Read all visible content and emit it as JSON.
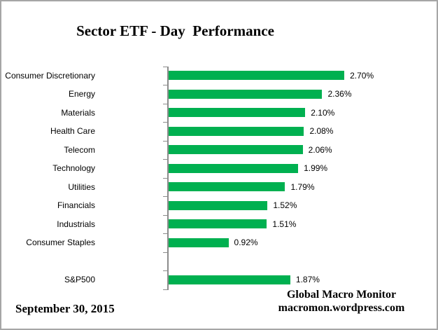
{
  "title": "Sector ETF - Day  Performance",
  "chart_data": {
    "type": "bar",
    "orientation": "horizontal",
    "categories": [
      "Consumer Discretionary",
      "Energy",
      "Materials",
      "Health Care",
      "Telecom",
      "Technology",
      "Utilities",
      "Financials",
      "Industrials",
      "Consumer Staples",
      "",
      "S&P500"
    ],
    "values": [
      2.7,
      2.36,
      2.1,
      2.08,
      2.06,
      1.99,
      1.79,
      1.52,
      1.51,
      0.92,
      null,
      1.87
    ],
    "value_labels": [
      "2.70%",
      "2.36%",
      "2.10%",
      "2.08%",
      "2.06%",
      "1.99%",
      "1.79%",
      "1.52%",
      "1.51%",
      "0.92%",
      "",
      "1.87%"
    ],
    "xlabel": "",
    "ylabel": "",
    "xlim": [
      0,
      3.0
    ],
    "grid": false,
    "legend": false,
    "bar_color": "#00B050",
    "axis_color": "#8C8C8C",
    "tick_marks": "category-boundaries"
  },
  "footer": {
    "date": "September 30, 2015",
    "attribution_line1": "Global Macro Monitor",
    "attribution_line2": "macromon.wordpress.com"
  },
  "frame": {
    "border_color": "#A6A6A6",
    "background": "#FFFFFF"
  }
}
